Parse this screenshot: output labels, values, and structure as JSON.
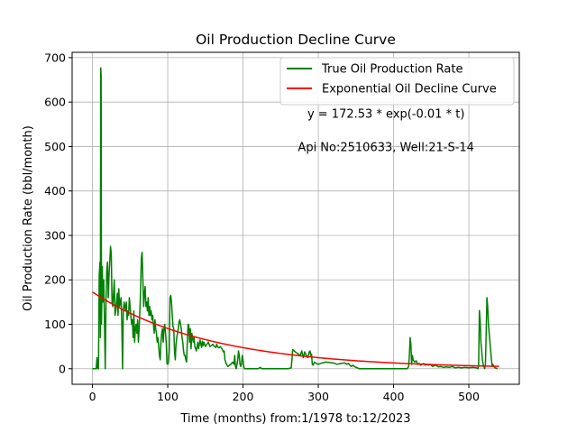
{
  "chart_data": {
    "type": "line",
    "title": "Oil Production Decline Curve",
    "xlabel": "Time (months) from:1/1978 to:12/2023",
    "ylabel": "Oil Production Rate (bbl/month)",
    "xlim": [
      -27,
      567
    ],
    "ylim": [
      -35,
      712
    ],
    "xticks": [
      0,
      100,
      200,
      300,
      400,
      500
    ],
    "yticks": [
      0,
      100,
      200,
      300,
      400,
      500,
      600,
      700
    ],
    "grid": true,
    "legend_position": "top-right",
    "annotations": [
      {
        "text": "y = 172.53 * exp(-0.01 * t)",
        "x": 390,
        "y": 565
      },
      {
        "text": "Api No:2510633, Well:21-S-14",
        "x": 390,
        "y": 490
      }
    ],
    "series": [
      {
        "name": "True Oil Production Rate",
        "color": "#008000",
        "points": [
          [
            0,
            0
          ],
          [
            3,
            0
          ],
          [
            5,
            0
          ],
          [
            6,
            25
          ],
          [
            7,
            0
          ],
          [
            8,
            0
          ],
          [
            9,
            210
          ],
          [
            10,
            240
          ],
          [
            10.5,
            70
          ],
          [
            11,
            677
          ],
          [
            11.5,
            660
          ],
          [
            12,
            100
          ],
          [
            13,
            230
          ],
          [
            14,
            150
          ],
          [
            15,
            200
          ],
          [
            16,
            100
          ],
          [
            17,
            0
          ],
          [
            18,
            150
          ],
          [
            19,
            220
          ],
          [
            20,
            240
          ],
          [
            21,
            160
          ],
          [
            22,
            210
          ],
          [
            23,
            240
          ],
          [
            24,
            275
          ],
          [
            25,
            260
          ],
          [
            26,
            150
          ],
          [
            27,
            140
          ],
          [
            28,
            170
          ],
          [
            29,
            200
          ],
          [
            30,
            120
          ],
          [
            31,
            130
          ],
          [
            32,
            150
          ],
          [
            33,
            170
          ],
          [
            34,
            120
          ],
          [
            35,
            180
          ],
          [
            36,
            140
          ],
          [
            37,
            150
          ],
          [
            38,
            160
          ],
          [
            39,
            100
          ],
          [
            40,
            0
          ],
          [
            41,
            130
          ],
          [
            42,
            150
          ],
          [
            43,
            140
          ],
          [
            44,
            130
          ],
          [
            45,
            150
          ],
          [
            46,
            110
          ],
          [
            47,
            130
          ],
          [
            48,
            120
          ],
          [
            49,
            160
          ],
          [
            50,
            140
          ],
          [
            51,
            120
          ],
          [
            52,
            100
          ],
          [
            53,
            110
          ],
          [
            54,
            70
          ],
          [
            55,
            130
          ],
          [
            56,
            60
          ],
          [
            57,
            90
          ],
          [
            58,
            100
          ],
          [
            59,
            80
          ],
          [
            60,
            110
          ],
          [
            61,
            60
          ],
          [
            62,
            90
          ],
          [
            63,
            130
          ],
          [
            64,
            180
          ],
          [
            65,
            250
          ],
          [
            66,
            262
          ],
          [
            67,
            200
          ],
          [
            68,
            140
          ],
          [
            69,
            170
          ],
          [
            70,
            185
          ],
          [
            71,
            140
          ],
          [
            72,
            150
          ],
          [
            73,
            130
          ],
          [
            74,
            160
          ],
          [
            75,
            120
          ],
          [
            76,
            140
          ],
          [
            77,
            120
          ],
          [
            78,
            130
          ],
          [
            79,
            110
          ],
          [
            80,
            120
          ],
          [
            81,
            100
          ],
          [
            82,
            80
          ],
          [
            83,
            110
          ],
          [
            84,
            90
          ],
          [
            85,
            80
          ],
          [
            86,
            60
          ],
          [
            87,
            70
          ],
          [
            88,
            50
          ],
          [
            89,
            30
          ],
          [
            90,
            20
          ],
          [
            91,
            60
          ],
          [
            92,
            80
          ],
          [
            93,
            90
          ],
          [
            94,
            60
          ],
          [
            95,
            90
          ],
          [
            96,
            100
          ],
          [
            97,
            80
          ],
          [
            98,
            60
          ],
          [
            99,
            12
          ],
          [
            100,
            10
          ],
          [
            101,
            15
          ],
          [
            102,
            40
          ],
          [
            103,
            160
          ],
          [
            104,
            165
          ],
          [
            105,
            150
          ],
          [
            106,
            120
          ],
          [
            107,
            95
          ],
          [
            108,
            90
          ],
          [
            109,
            40
          ],
          [
            110,
            20
          ],
          [
            111,
            55
          ],
          [
            112,
            70
          ],
          [
            113,
            80
          ],
          [
            114,
            90
          ],
          [
            115,
            105
          ],
          [
            116,
            110
          ],
          [
            117,
            100
          ],
          [
            118,
            90
          ],
          [
            119,
            70
          ],
          [
            120,
            60
          ],
          [
            121,
            40
          ],
          [
            122,
            30
          ],
          [
            123,
            30
          ],
          [
            124,
            20
          ],
          [
            125,
            15
          ],
          [
            126,
            60
          ],
          [
            127,
            100
          ],
          [
            128,
            98
          ],
          [
            129,
            60
          ],
          [
            130,
            90
          ],
          [
            131,
            45
          ],
          [
            132,
            80
          ],
          [
            133,
            70
          ],
          [
            134,
            60
          ],
          [
            135,
            70
          ],
          [
            136,
            50
          ],
          [
            137,
            45
          ],
          [
            138,
            40
          ],
          [
            139,
            50
          ],
          [
            140,
            60
          ],
          [
            141,
            45
          ],
          [
            142,
            55
          ],
          [
            143,
            65
          ],
          [
            144,
            55
          ],
          [
            145,
            48
          ],
          [
            146,
            62
          ],
          [
            147,
            52
          ],
          [
            148,
            60
          ],
          [
            149,
            55
          ],
          [
            150,
            50
          ],
          [
            152,
            55
          ],
          [
            154,
            60
          ],
          [
            156,
            50
          ],
          [
            158,
            52
          ],
          [
            160,
            55
          ],
          [
            162,
            50
          ],
          [
            164,
            48
          ],
          [
            165,
            55
          ],
          [
            166,
            50
          ],
          [
            168,
            47
          ],
          [
            170,
            50
          ],
          [
            172,
            45
          ],
          [
            174,
            38
          ],
          [
            175,
            40
          ],
          [
            176,
            20
          ],
          [
            178,
            10
          ],
          [
            180,
            5
          ],
          [
            182,
            8
          ],
          [
            184,
            10
          ],
          [
            186,
            15
          ],
          [
            188,
            10
          ],
          [
            189,
            30
          ],
          [
            190,
            5
          ],
          [
            191,
            0
          ],
          [
            192,
            10
          ],
          [
            193,
            20
          ],
          [
            194,
            40
          ],
          [
            195,
            30
          ],
          [
            196,
            10
          ],
          [
            197,
            5
          ],
          [
            198,
            10
          ],
          [
            199,
            30
          ],
          [
            200,
            20
          ],
          [
            201,
            5
          ],
          [
            202,
            0
          ],
          [
            210,
            0
          ],
          [
            215,
            0
          ],
          [
            220,
            0
          ],
          [
            223,
            3
          ],
          [
            225,
            0
          ],
          [
            235,
            0
          ],
          [
            245,
            0
          ],
          [
            255,
            0
          ],
          [
            260,
            0
          ],
          [
            264,
            2
          ],
          [
            265,
            20
          ],
          [
            266,
            43
          ],
          [
            268,
            40
          ],
          [
            270,
            37
          ],
          [
            272,
            35
          ],
          [
            274,
            32
          ],
          [
            276,
            30
          ],
          [
            278,
            40
          ],
          [
            280,
            25
          ],
          [
            282,
            38
          ],
          [
            284,
            30
          ],
          [
            286,
            25
          ],
          [
            288,
            38
          ],
          [
            289,
            40
          ],
          [
            290,
            30
          ],
          [
            291,
            33
          ],
          [
            292,
            10
          ],
          [
            293,
            8
          ],
          [
            295,
            15
          ],
          [
            297,
            12
          ],
          [
            300,
            10
          ],
          [
            305,
            13
          ],
          [
            310,
            15
          ],
          [
            315,
            14
          ],
          [
            320,
            13
          ],
          [
            325,
            10
          ],
          [
            330,
            12
          ],
          [
            335,
            13
          ],
          [
            338,
            10
          ],
          [
            340,
            12
          ],
          [
            342,
            8
          ],
          [
            344,
            5
          ],
          [
            346,
            8
          ],
          [
            348,
            5
          ],
          [
            350,
            3
          ],
          [
            352,
            2
          ],
          [
            354,
            0
          ],
          [
            360,
            0
          ],
          [
            370,
            0
          ],
          [
            380,
            0
          ],
          [
            390,
            0
          ],
          [
            400,
            0
          ],
          [
            410,
            0
          ],
          [
            418,
            0
          ],
          [
            420,
            5
          ],
          [
            421,
            30
          ],
          [
            422,
            70
          ],
          [
            423,
            55
          ],
          [
            424,
            10
          ],
          [
            425,
            30
          ],
          [
            426,
            20
          ],
          [
            428,
            15
          ],
          [
            430,
            18
          ],
          [
            432,
            10
          ],
          [
            434,
            12
          ],
          [
            436,
            8
          ],
          [
            438,
            10
          ],
          [
            440,
            12
          ],
          [
            442,
            8
          ],
          [
            444,
            10
          ],
          [
            446,
            8
          ],
          [
            448,
            10
          ],
          [
            450,
            8
          ],
          [
            452,
            5
          ],
          [
            455,
            8
          ],
          [
            458,
            6
          ],
          [
            460,
            4
          ],
          [
            463,
            5
          ],
          [
            466,
            3
          ],
          [
            470,
            4
          ],
          [
            474,
            3
          ],
          [
            478,
            5
          ],
          [
            482,
            2
          ],
          [
            486,
            3
          ],
          [
            490,
            2
          ],
          [
            495,
            3
          ],
          [
            500,
            2
          ],
          [
            505,
            3
          ],
          [
            510,
            2
          ],
          [
            512,
            0
          ],
          [
            513,
            10
          ],
          [
            514,
            131
          ],
          [
            515,
            110
          ],
          [
            516,
            60
          ],
          [
            517,
            40
          ],
          [
            518,
            20
          ],
          [
            519,
            10
          ],
          [
            520,
            5
          ],
          [
            521,
            0
          ],
          [
            522,
            10
          ],
          [
            523,
            80
          ],
          [
            524,
            160
          ],
          [
            525,
            140
          ],
          [
            526,
            100
          ],
          [
            527,
            80
          ],
          [
            528,
            60
          ],
          [
            529,
            40
          ],
          [
            530,
            20
          ],
          [
            531,
            5
          ],
          [
            532,
            10
          ],
          [
            533,
            5
          ],
          [
            535,
            2
          ],
          [
            538,
            0
          ]
        ]
      },
      {
        "name": "Exponential Oil Decline Curve",
        "color": "#ff0000",
        "function": {
          "a": 172.53,
          "b": 0.00645,
          "t_min": 0,
          "t_max": 540
        }
      }
    ]
  }
}
